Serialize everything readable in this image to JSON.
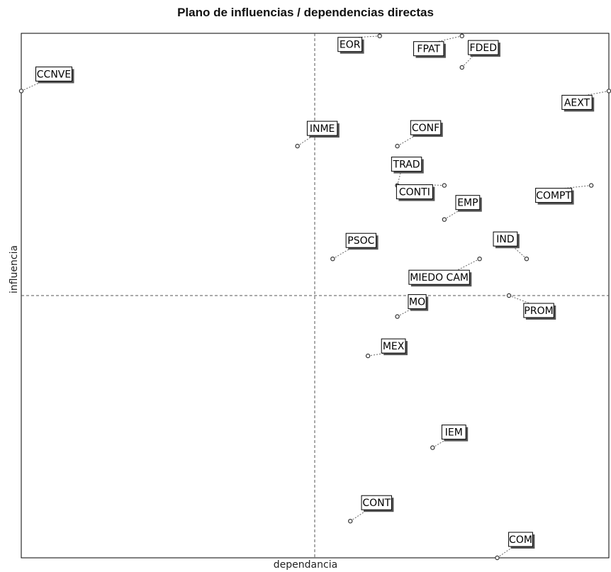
{
  "chart_data": {
    "type": "scatter",
    "title": "Plano de influencias / dependencias directas",
    "xlabel": "dependancia",
    "ylabel": "influencia",
    "axis_ticks": "none",
    "grid": false,
    "crosshair": "dashed center lines",
    "points": [
      {
        "label": "CCNVE",
        "x": 0.0,
        "y": 0.78
      },
      {
        "label": "EOR",
        "x": 0.61,
        "y": 0.99
      },
      {
        "label": "FPAT",
        "x": 0.75,
        "y": 0.99
      },
      {
        "label": "FDED",
        "x": 0.75,
        "y": 0.87
      },
      {
        "label": "AEXT",
        "x": 1.0,
        "y": 0.78
      },
      {
        "label": "INME",
        "x": 0.47,
        "y": 0.57
      },
      {
        "label": "CONF",
        "x": 0.64,
        "y": 0.57
      },
      {
        "label": "TRAD",
        "x": 0.64,
        "y": 0.42
      },
      {
        "label": "CONTI",
        "x": 0.72,
        "y": 0.42
      },
      {
        "label": "EMP",
        "x": 0.72,
        "y": 0.29
      },
      {
        "label": "COMPT",
        "x": 0.97,
        "y": 0.42
      },
      {
        "label": "PSOC",
        "x": 0.53,
        "y": 0.14
      },
      {
        "label": "IND",
        "x": 0.86,
        "y": 0.14
      },
      {
        "label": "MIEDO CAM",
        "x": 0.78,
        "y": 0.14
      },
      {
        "label": "MO",
        "x": 0.64,
        "y": -0.08
      },
      {
        "label": "PROM",
        "x": 0.83,
        "y": 0.0
      },
      {
        "label": "MEX",
        "x": 0.59,
        "y": -0.23
      },
      {
        "label": "IEM",
        "x": 0.7,
        "y": -0.58
      },
      {
        "label": "CONT",
        "x": 0.56,
        "y": -0.86
      },
      {
        "label": "COM",
        "x": 0.81,
        "y": -1.0
      }
    ]
  }
}
